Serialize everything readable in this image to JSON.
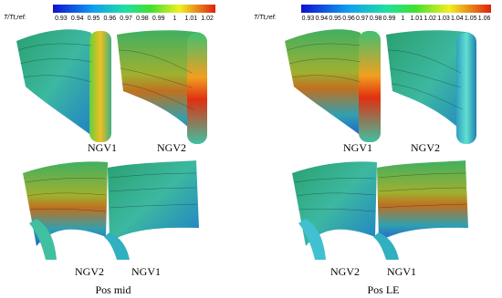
{
  "panels": [
    {
      "colorbar": {
        "label": "T/Tt,ref:",
        "ticks": [
          0.93,
          0.94,
          0.95,
          0.96,
          0.97,
          0.98,
          0.99,
          1,
          1.01,
          1.02
        ]
      },
      "top_labels": [
        "NGV1",
        "NGV2"
      ],
      "bottom_labels": [
        "NGV2",
        "NGV1"
      ],
      "caption": "Pos mid"
    },
    {
      "colorbar": {
        "label": "T/Tt,ref:",
        "ticks": [
          0.93,
          0.94,
          0.95,
          0.96,
          0.97,
          0.98,
          0.99,
          1,
          1.01,
          1.02,
          1.03,
          1.04,
          1.05,
          1.06
        ]
      },
      "top_labels": [
        "NGV1",
        "NGV2"
      ],
      "bottom_labels": [
        "NGV2",
        "NGV1"
      ],
      "caption": "Pos LE"
    }
  ]
}
